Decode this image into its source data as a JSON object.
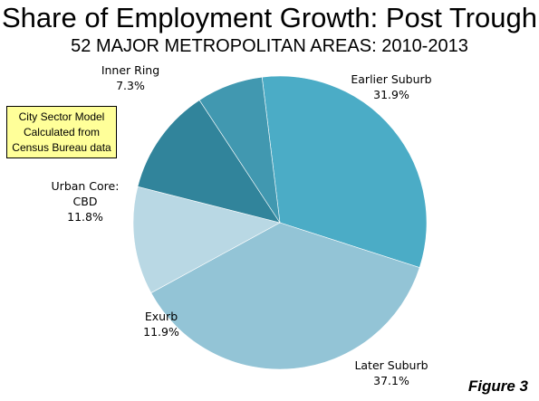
{
  "title": "Share of Employment Growth: Post Trough",
  "subtitle": "52 MAJOR METROPOLITAN AREAS: 2010-2013",
  "note": {
    "line1": "City Sector Model",
    "line2": "Calculated from",
    "line3": "Census Bureau data"
  },
  "figure_label": "Figure 3",
  "chart_data": {
    "type": "pie",
    "title": "Share of Employment Growth: Post Trough",
    "subtitle": "52 MAJOR METROPOLITAN AREAS: 2010-2013",
    "unit": "%",
    "slices": [
      {
        "name": "Earlier Suburb",
        "value": 31.9,
        "label_lines": [
          "Earlier Suburb",
          "31.9%"
        ],
        "color": "#4bacc6"
      },
      {
        "name": "Later Suburb",
        "value": 37.1,
        "label_lines": [
          "Later Suburb",
          "37.1%"
        ],
        "color": "#93c4d6"
      },
      {
        "name": "Exurb",
        "value": 11.9,
        "label_lines": [
          "Exurb",
          "11.9%"
        ],
        "color": "#b9d8e4"
      },
      {
        "name": "Urban Core: CBD",
        "value": 11.8,
        "label_lines": [
          "Urban Core:",
          "CBD",
          "11.8%"
        ],
        "color": "#31849b"
      },
      {
        "name": "Inner Ring",
        "value": 7.3,
        "label_lines": [
          "Inner Ring",
          "7.3%"
        ],
        "color": "#4198b0"
      }
    ]
  }
}
